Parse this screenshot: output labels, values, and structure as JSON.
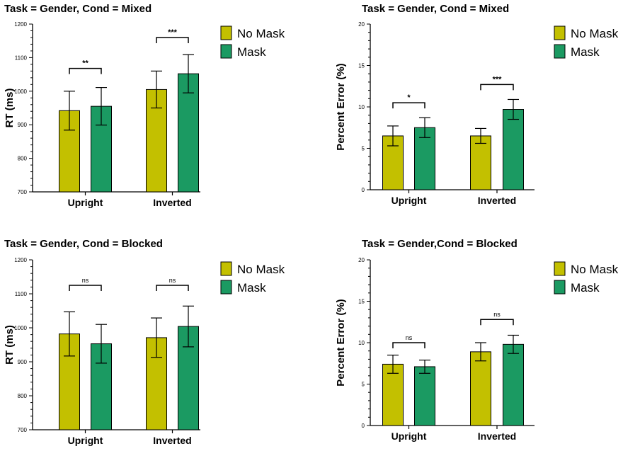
{
  "colors": {
    "no_mask": "#c3c000",
    "mask": "#1b9a62",
    "axis": "#000000"
  },
  "chart_data": [
    {
      "type": "bar",
      "title": "Task = Gender, Cond = Mixed",
      "ylabel": "RT (ms)",
      "xlabel": "",
      "categories": [
        "Upright",
        "Inverted"
      ],
      "ylim": [
        700,
        1200
      ],
      "yticks": [
        700,
        800,
        900,
        1000,
        1100,
        1200
      ],
      "legend": [
        "No Mask",
        "Mask"
      ],
      "legend_position": "right",
      "series": [
        {
          "name": "No Mask",
          "values": [
            942,
            1005
          ],
          "err": [
            58,
            55
          ]
        },
        {
          "name": "Mask",
          "values": [
            955,
            1052
          ],
          "err": [
            56,
            57
          ]
        }
      ],
      "significance": [
        {
          "category": "Upright",
          "label": "**",
          "y": 1068
        },
        {
          "category": "Inverted",
          "label": "***",
          "y": 1160
        }
      ]
    },
    {
      "type": "bar",
      "title": "Task = Gender, Cond = Mixed",
      "ylabel": "Percent Error (%)",
      "xlabel": "",
      "categories": [
        "Upright",
        "Inverted"
      ],
      "ylim": [
        0,
        20
      ],
      "yticks": [
        0,
        5,
        10,
        15,
        20
      ],
      "legend": [
        "No Mask",
        "Mask"
      ],
      "legend_position": "right",
      "series": [
        {
          "name": "No Mask",
          "values": [
            6.5,
            6.5
          ],
          "err": [
            1.2,
            0.9
          ]
        },
        {
          "name": "Mask",
          "values": [
            7.5,
            9.7
          ],
          "err": [
            1.2,
            1.2
          ]
        }
      ],
      "significance": [
        {
          "category": "Upright",
          "label": "*",
          "y": 10.5
        },
        {
          "category": "Inverted",
          "label": "***",
          "y": 12.7
        }
      ]
    },
    {
      "type": "bar",
      "title": "Task = Gender, Cond = Blocked",
      "ylabel": "RT (ms)",
      "xlabel": "",
      "categories": [
        "Upright",
        "Inverted"
      ],
      "ylim": [
        700,
        1200
      ],
      "yticks": [
        700,
        800,
        900,
        1000,
        1100,
        1200
      ],
      "legend": [
        "No Mask",
        "Mask"
      ],
      "legend_position": "right",
      "series": [
        {
          "name": "No Mask",
          "values": [
            982,
            971
          ],
          "err": [
            65,
            58
          ]
        },
        {
          "name": "Mask",
          "values": [
            953,
            1004
          ],
          "err": [
            57,
            60
          ]
        }
      ],
      "significance": [
        {
          "category": "Upright",
          "label": "ns",
          "y": 1125
        },
        {
          "category": "Inverted",
          "label": "ns",
          "y": 1125
        }
      ]
    },
    {
      "type": "bar",
      "title": "Task = Gender,Cond = Blocked",
      "ylabel": "Percent Error (%)",
      "xlabel": "",
      "categories": [
        "Upright",
        "Inverted"
      ],
      "ylim": [
        0,
        20
      ],
      "yticks": [
        0,
        5,
        10,
        15,
        20
      ],
      "legend": [
        "No Mask",
        "Mask"
      ],
      "legend_position": "right",
      "series": [
        {
          "name": "No Mask",
          "values": [
            7.4,
            8.9
          ],
          "err": [
            1.1,
            1.1
          ]
        },
        {
          "name": "Mask",
          "values": [
            7.1,
            9.8
          ],
          "err": [
            0.8,
            1.1
          ]
        }
      ],
      "significance": [
        {
          "category": "Upright",
          "label": "ns",
          "y": 10.0
        },
        {
          "category": "Inverted",
          "label": "ns",
          "y": 12.8
        }
      ]
    }
  ]
}
